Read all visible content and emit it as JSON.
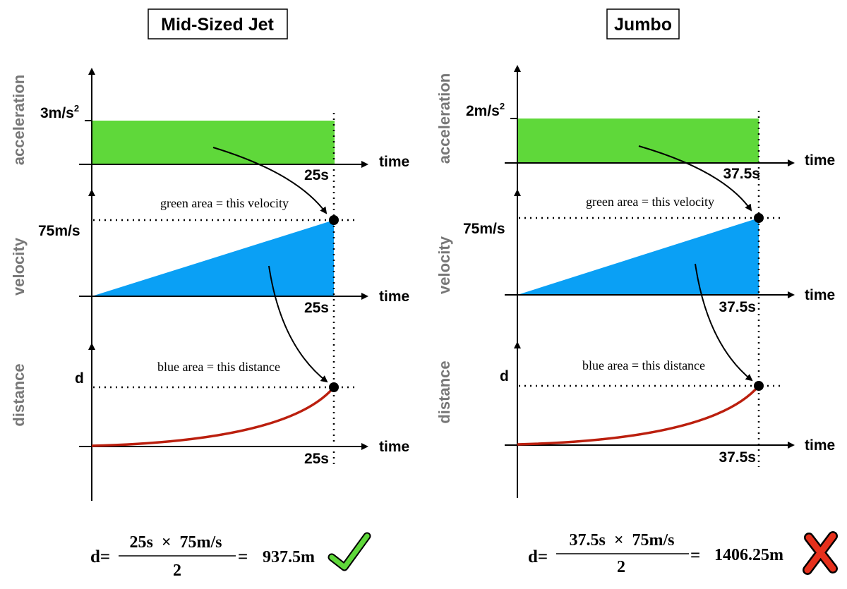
{
  "panels": [
    {
      "title": "Mid-Sized Jet",
      "acceleration_label": "3m/s",
      "acceleration_exp": "2",
      "velocity_label": "75m/s",
      "distance_label": "d",
      "time_value": "25s",
      "axis_names": {
        "acceleration": "acceleration",
        "velocity": "velocity",
        "distance": "distance",
        "time": "time"
      },
      "annotation_green": "green area = this velocity",
      "annotation_blue": "blue area = this distance",
      "formula": {
        "lhs": "d=",
        "numerator": "25s  ×  75m/s",
        "denominator": "2",
        "equals": "=",
        "result": "937.5m"
      },
      "verdict": "check-mark"
    },
    {
      "title": "Jumbo",
      "acceleration_label": "2m/s",
      "acceleration_exp": "2",
      "velocity_label": "75m/s",
      "distance_label": "d",
      "time_value": "37.5s",
      "axis_names": {
        "acceleration": "acceleration",
        "velocity": "velocity",
        "distance": "distance",
        "time": "time"
      },
      "annotation_green": "green area = this velocity",
      "annotation_blue": "blue area = this distance",
      "formula": {
        "lhs": "d=",
        "numerator": "37.5s  ×  75m/s",
        "denominator": "2",
        "equals": "=",
        "result": "1406.25m"
      },
      "verdict": "cross-mark"
    }
  ],
  "colors": {
    "acceleration_fill": "#5fd83a",
    "velocity_fill": "#0aa0f5",
    "distance_curve": "#bb1f0e",
    "axis_label": "#777777",
    "check": "#5fd83a",
    "cross": "#e6301c"
  }
}
